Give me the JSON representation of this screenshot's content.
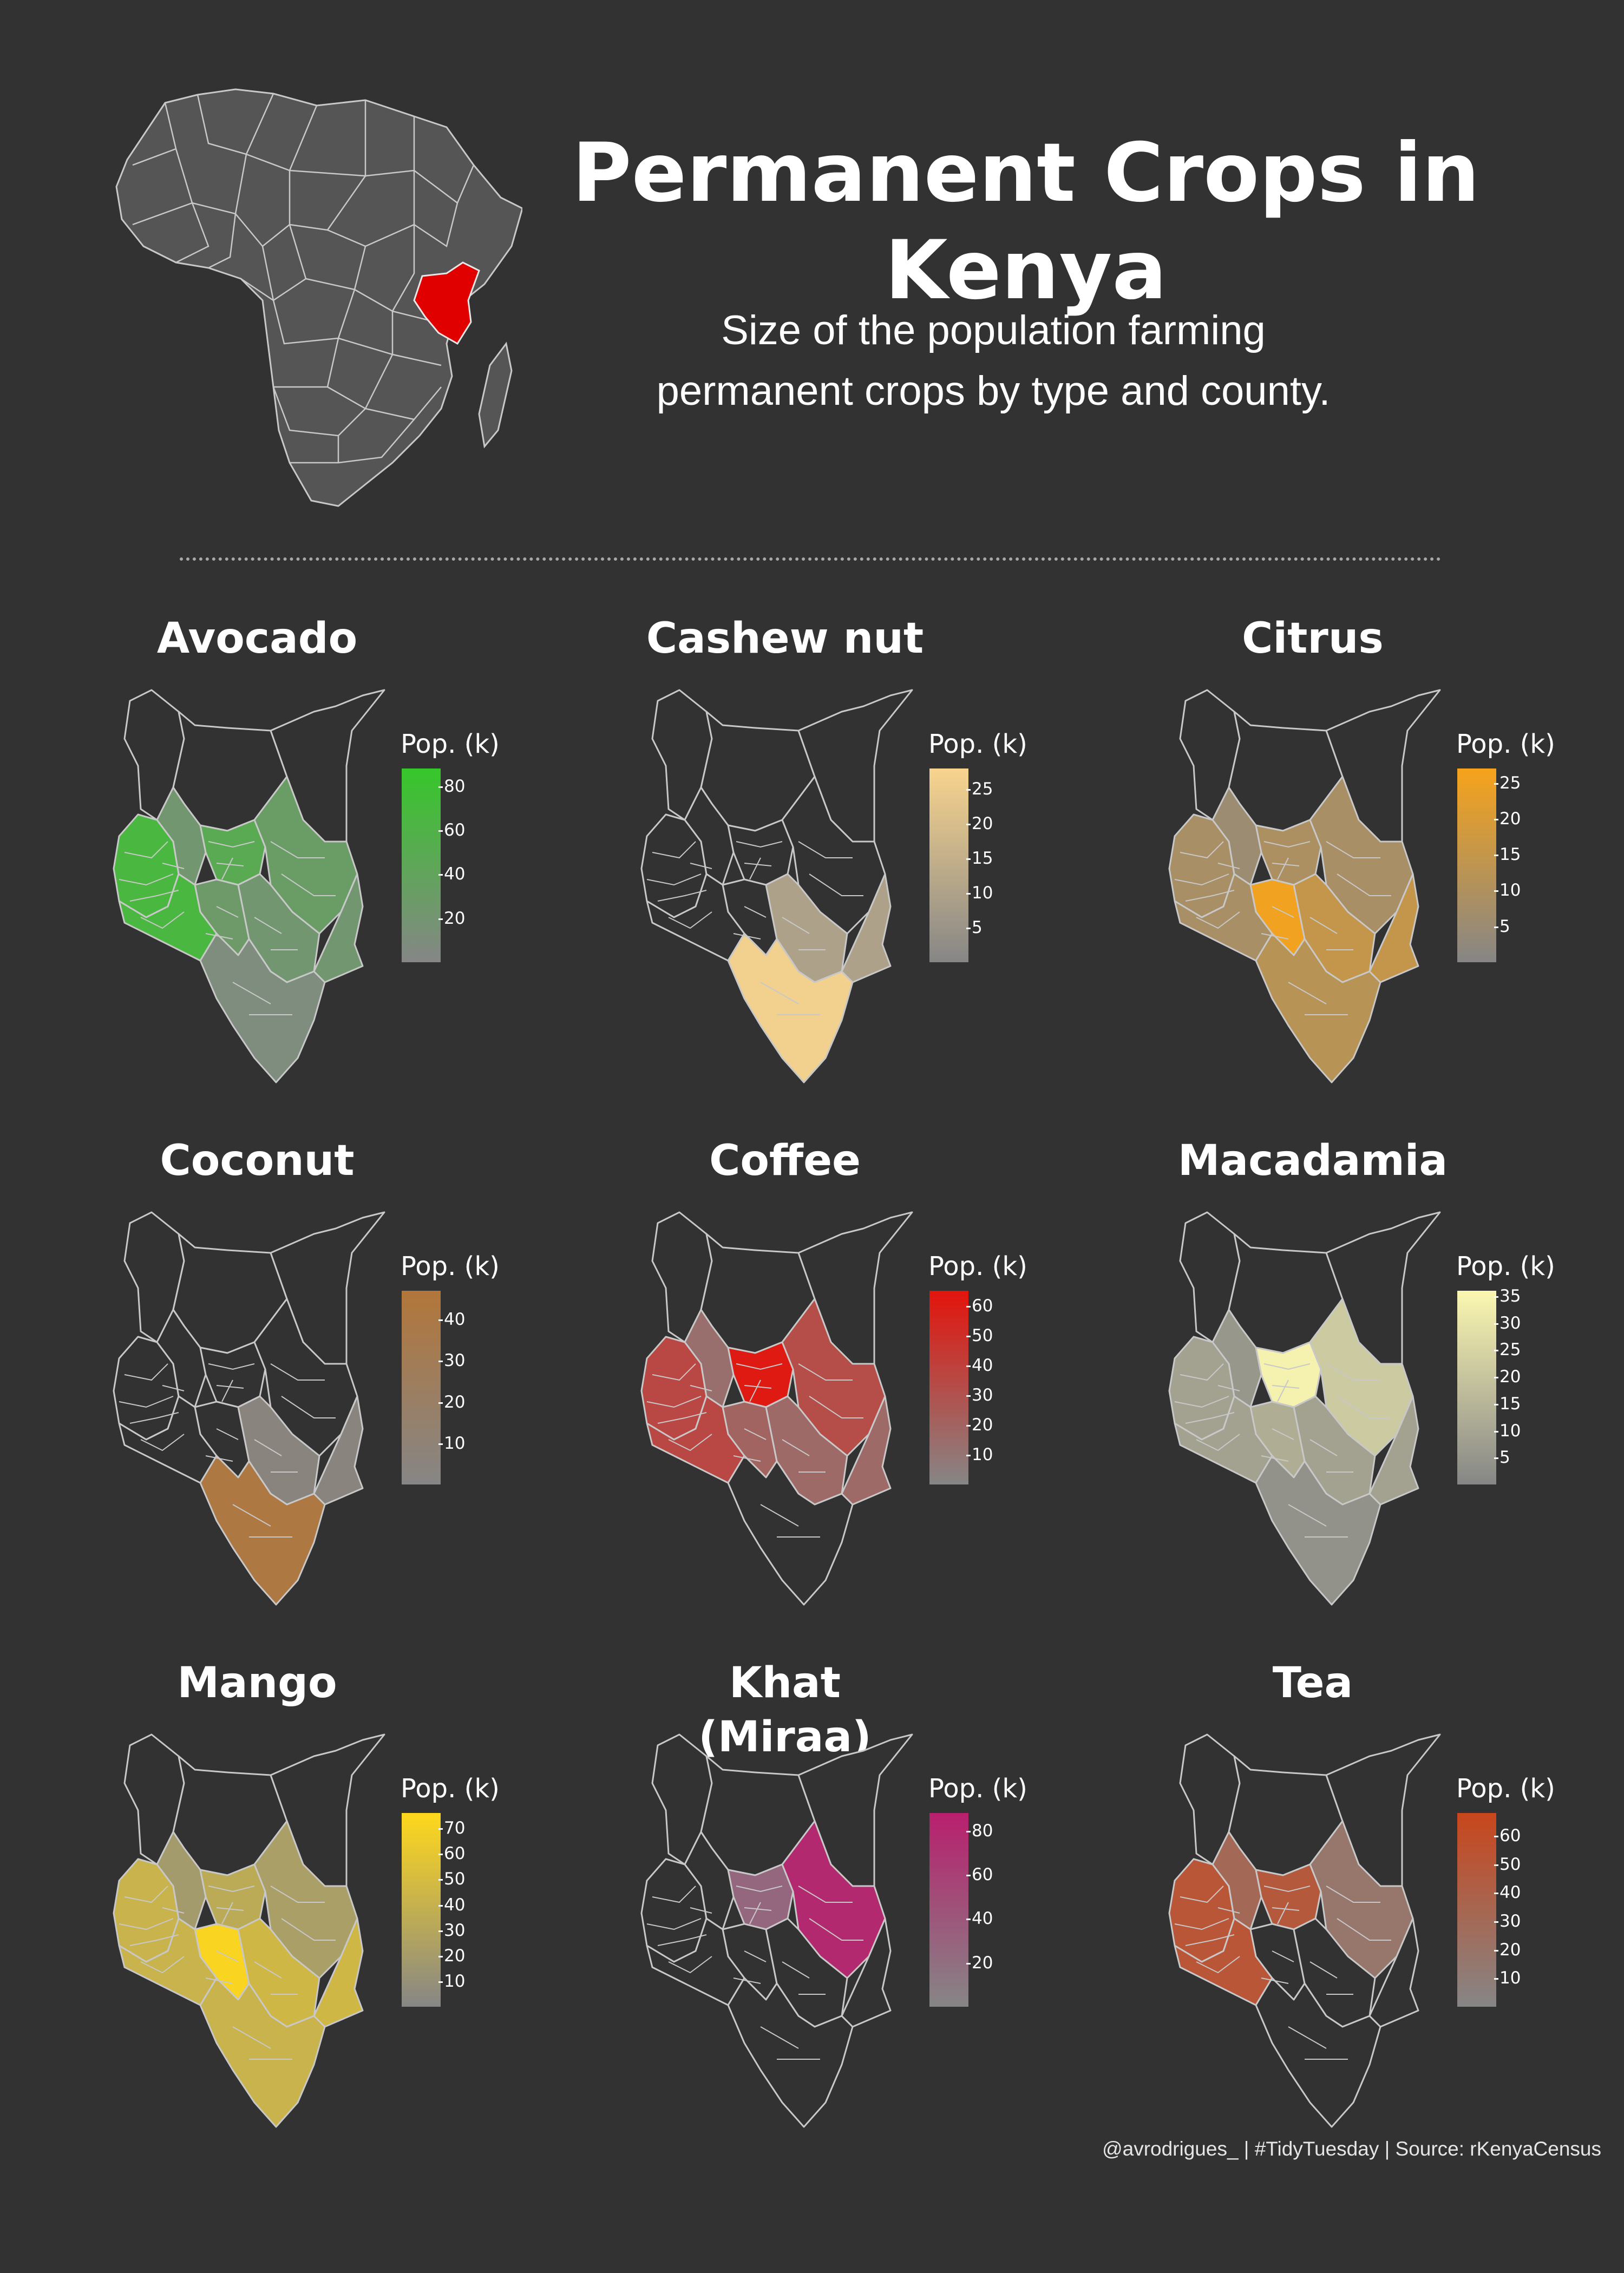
{
  "header": {
    "title": "Permanent Crops in Kenya",
    "subtitle_line1": "Size of the population farming",
    "subtitle_line2": "permanent crops by type and county."
  },
  "colors": {
    "background": "#323232",
    "africa_fill": "#555555",
    "kenya_highlight": "#e00000",
    "border": "#c8c8c8",
    "low": "#868686"
  },
  "legend_title": "Pop. (k)",
  "panels": [
    {
      "name": "Avocado",
      "color": "#36c72a",
      "ticks": [
        20,
        40,
        60,
        80
      ],
      "max": 88,
      "values": {
        "west": 0.75,
        "central": 0.55,
        "eastern": 0.35,
        "lowereast": 0.25,
        "rift": 0.25,
        "coast": 0.1,
        "nairobi": 0.3
      }
    },
    {
      "name": "Cashew nut",
      "color": "#f8d48e",
      "ticks": [
        5,
        10,
        15,
        20,
        25
      ],
      "max": 28,
      "values": {
        "west": 0.0,
        "central": 0.0,
        "eastern": 0.0,
        "lowereast": 0.35,
        "rift": 0.0,
        "coast": 0.95,
        "nairobi": 0.0
      }
    },
    {
      "name": "Citrus",
      "color": "#f6a31b",
      "ticks": [
        5,
        10,
        15,
        20,
        25
      ],
      "max": 27,
      "values": {
        "west": 0.3,
        "central": 0.35,
        "eastern": 0.3,
        "lowereast": 0.55,
        "rift": 0.2,
        "coast": 0.45,
        "nairobi": 0.95
      }
    },
    {
      "name": "Coconut",
      "color": "#b2763a",
      "ticks": [
        10,
        20,
        30,
        40
      ],
      "max": 47,
      "values": {
        "west": 0.0,
        "central": 0.0,
        "eastern": 0.0,
        "lowereast": 0.1,
        "rift": 0.0,
        "coast": 0.9,
        "nairobi": 0.0
      }
    },
    {
      "name": "Coffee",
      "color": "#e3140c",
      "ticks": [
        10,
        20,
        30,
        40,
        50,
        60
      ],
      "max": 65,
      "values": {
        "west": 0.55,
        "central": 0.95,
        "eastern": 0.5,
        "lowereast": 0.25,
        "rift": 0.2,
        "coast": 0.0,
        "nairobi": 0.3
      }
    },
    {
      "name": "Macadamia",
      "color": "#fbf7b1",
      "ticks": [
        5,
        10,
        15,
        20,
        25,
        30,
        35
      ],
      "max": 36,
      "values": {
        "west": 0.25,
        "central": 0.95,
        "eastern": 0.6,
        "lowereast": 0.25,
        "rift": 0.15,
        "coast": 0.1,
        "nairobi": 0.35
      }
    },
    {
      "name": "Mango",
      "color": "#ffd81c",
      "ticks": [
        10,
        20,
        30,
        40,
        50,
        60,
        70
      ],
      "max": 76,
      "values": {
        "west": 0.55,
        "central": 0.45,
        "eastern": 0.3,
        "lowereast": 0.6,
        "rift": 0.25,
        "coast": 0.55,
        "nairobi": 0.95
      }
    },
    {
      "name": "Khat (Miraa)",
      "color": "#b81f6e",
      "ticks": [
        20,
        40,
        60,
        80
      ],
      "max": 88,
      "values": {
        "west": 0.0,
        "central": 0.3,
        "eastern": 0.9,
        "lowereast": 0.0,
        "rift": 0.0,
        "coast": 0.0,
        "nairobi": 0.0
      }
    },
    {
      "name": "Tea",
      "color": "#c8461c",
      "ticks": [
        10,
        20,
        30,
        40,
        50,
        60
      ],
      "max": 68,
      "values": {
        "west": 0.75,
        "central": 0.7,
        "eastern": 0.25,
        "lowereast": 0.0,
        "rift": 0.45,
        "coast": 0.0,
        "nairobi": 0.0
      }
    }
  ],
  "caption": "@avrodrigues_ | #TidyTuesday | Source: rKenyaCensus"
}
